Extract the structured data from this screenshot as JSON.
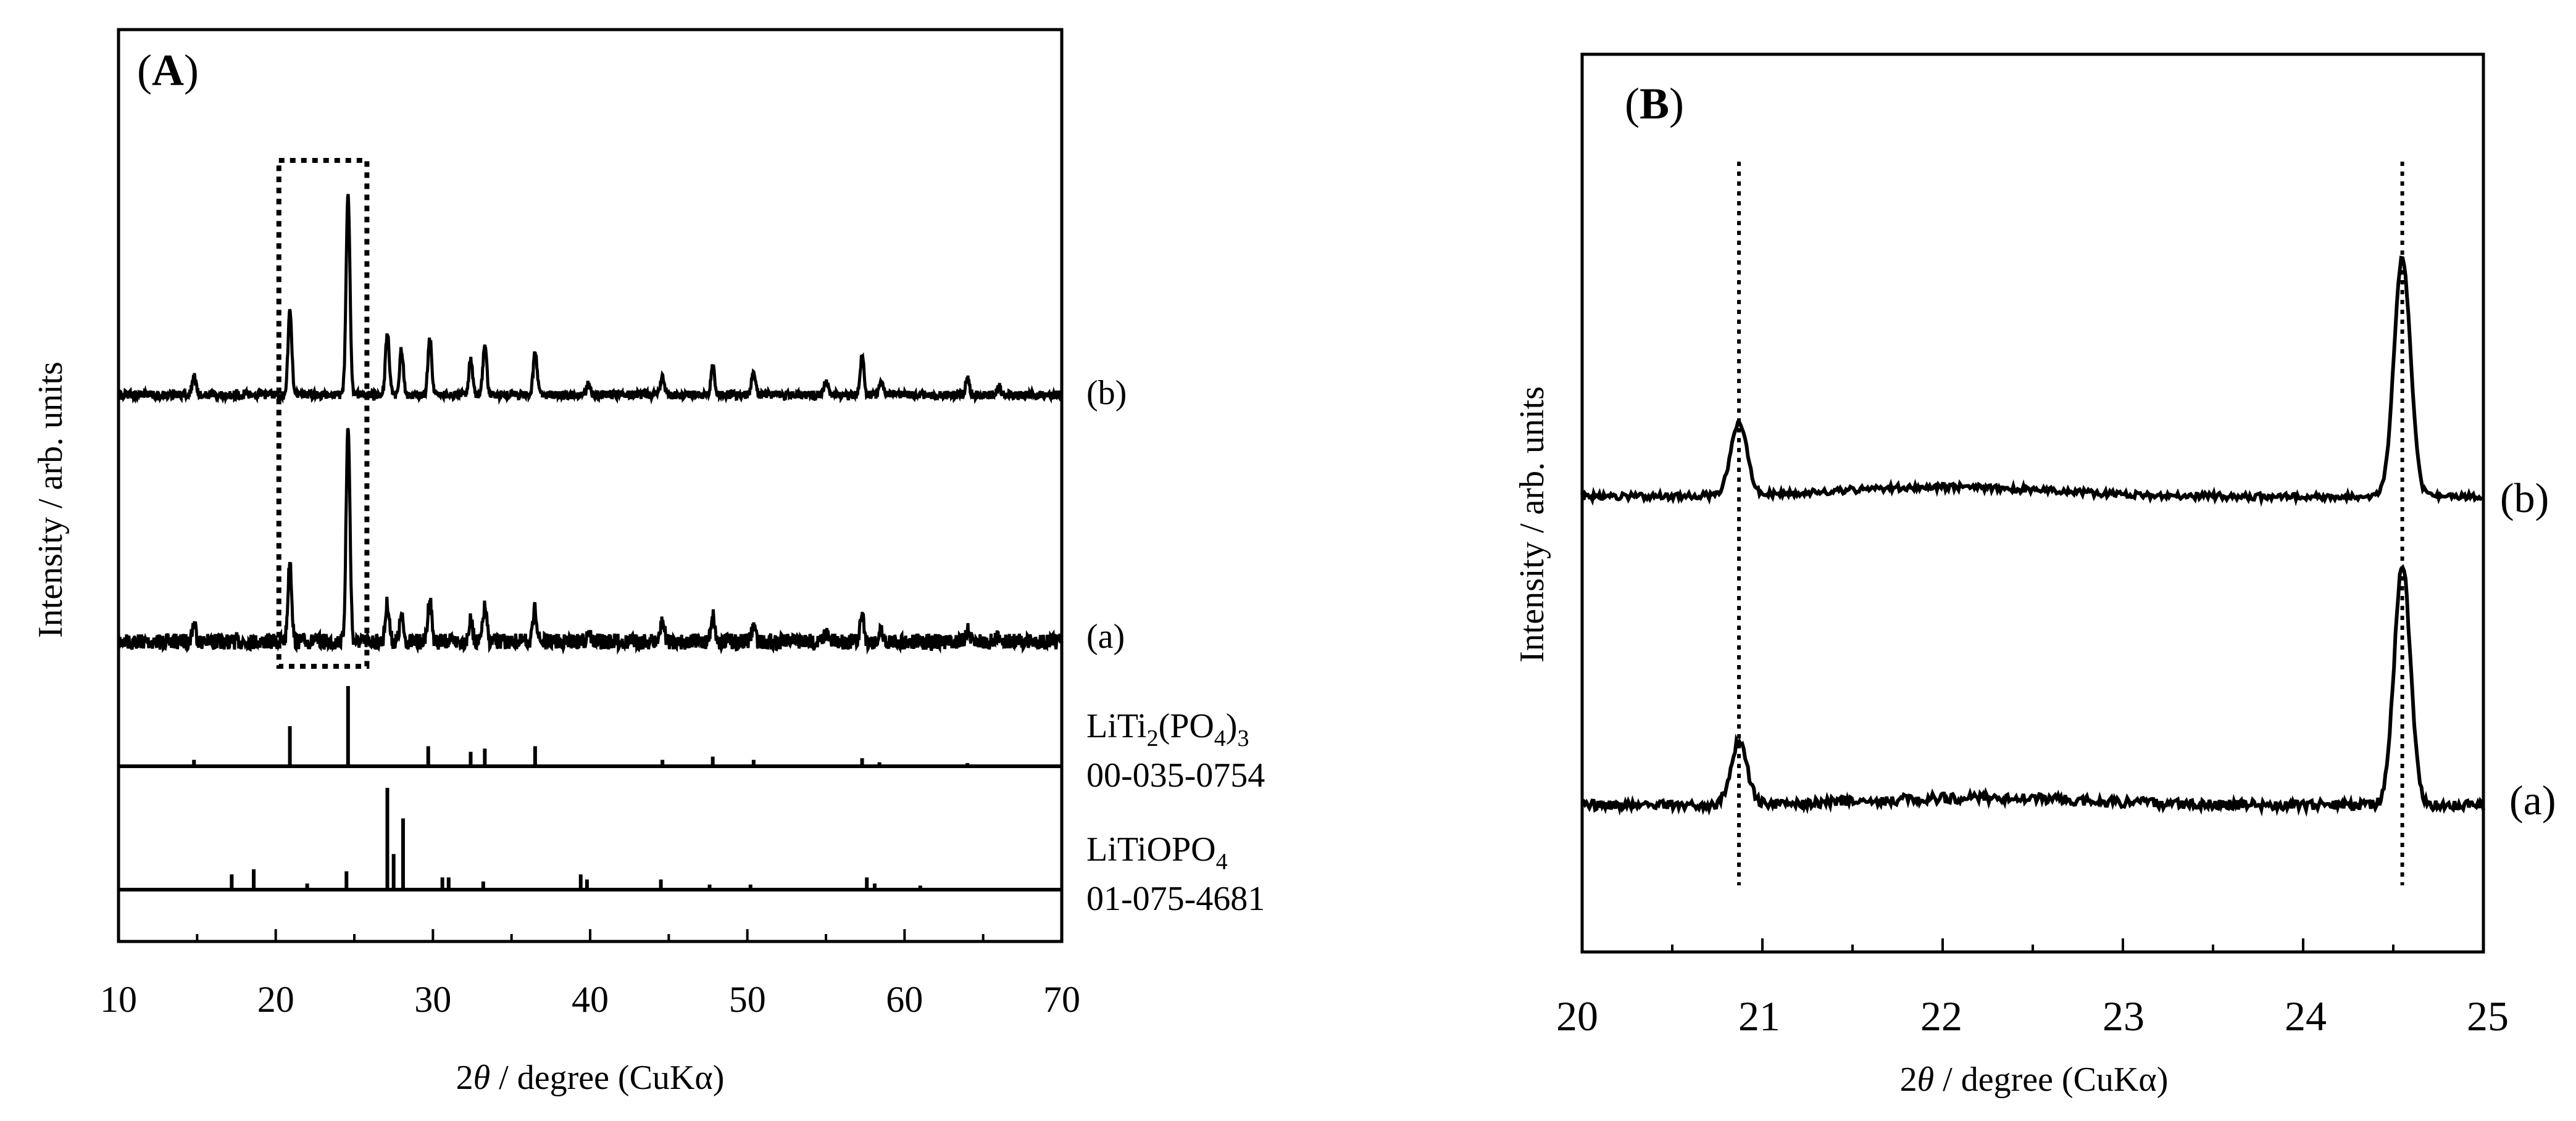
{
  "chart_data": [
    {
      "type": "line",
      "panel_label": "A",
      "xlabel_prefix": "2",
      "xlabel_theta": "θ",
      "xlabel_suffix": " / degree (CuKα)",
      "ylabel": "Intensity / arb. units",
      "xlim": [
        10,
        70
      ],
      "xticks": [
        10,
        20,
        30,
        40,
        50,
        60,
        70
      ],
      "xtick_labels": [
        "10",
        "20",
        "30",
        "40",
        "50",
        "60",
        "70"
      ],
      "highlight_box_x": [
        20.2,
        25.8
      ],
      "series": [
        {
          "name": "(a)",
          "peaks": [
            [
              14.8,
              0.08
            ],
            [
              20.9,
              0.35
            ],
            [
              24.6,
              0.95
            ],
            [
              27.1,
              0.17
            ],
            [
              28.0,
              0.11
            ],
            [
              29.8,
              0.19
            ],
            [
              32.4,
              0.09
            ],
            [
              33.3,
              0.15
            ],
            [
              36.5,
              0.14
            ],
            [
              39.9,
              0.05
            ],
            [
              44.6,
              0.09
            ],
            [
              47.8,
              0.12
            ],
            [
              50.4,
              0.07
            ],
            [
              55.0,
              0.04
            ],
            [
              57.3,
              0.12
            ],
            [
              58.5,
              0.05
            ],
            [
              64.0,
              0.05
            ],
            [
              66.0,
              0.03
            ]
          ]
        },
        {
          "name": "(b)",
          "peaks": [
            [
              14.8,
              0.09
            ],
            [
              20.9,
              0.41
            ],
            [
              24.6,
              1.0
            ],
            [
              27.1,
              0.3
            ],
            [
              28.0,
              0.22
            ],
            [
              29.8,
              0.28
            ],
            [
              32.4,
              0.17
            ],
            [
              33.3,
              0.24
            ],
            [
              36.5,
              0.21
            ],
            [
              39.9,
              0.06
            ],
            [
              44.6,
              0.1
            ],
            [
              47.8,
              0.14
            ],
            [
              50.4,
              0.12
            ],
            [
              55.0,
              0.07
            ],
            [
              57.3,
              0.19
            ],
            [
              58.5,
              0.07
            ],
            [
              64.0,
              0.08
            ],
            [
              66.0,
              0.04
            ]
          ]
        }
      ],
      "references": [
        {
          "formula_base": "LiTi",
          "formula_sub1": "2",
          "formula_mid": "(PO",
          "formula_sub2": "4",
          "formula_end": ")",
          "formula_sub3": "3",
          "pdf": "00-035-0754",
          "lines": [
            [
              14.8,
              0.08
            ],
            [
              20.9,
              0.5
            ],
            [
              24.6,
              1.0
            ],
            [
              29.7,
              0.25
            ],
            [
              32.4,
              0.18
            ],
            [
              33.3,
              0.22
            ],
            [
              36.5,
              0.25
            ],
            [
              44.6,
              0.08
            ],
            [
              47.8,
              0.12
            ],
            [
              50.4,
              0.08
            ],
            [
              57.3,
              0.1
            ],
            [
              58.4,
              0.05
            ],
            [
              64.0,
              0.04
            ]
          ]
        },
        {
          "formula_base": "LiTiOPO",
          "formula_sub1": "4",
          "pdf": "01-075-4681",
          "lines": [
            [
              17.2,
              0.15
            ],
            [
              18.6,
              0.2
            ],
            [
              22.0,
              0.06
            ],
            [
              24.5,
              0.18
            ],
            [
              27.1,
              1.0
            ],
            [
              27.5,
              0.35
            ],
            [
              28.1,
              0.7
            ],
            [
              30.6,
              0.12
            ],
            [
              31.0,
              0.12
            ],
            [
              33.2,
              0.08
            ],
            [
              39.4,
              0.15
            ],
            [
              39.8,
              0.1
            ],
            [
              44.5,
              0.1
            ],
            [
              47.6,
              0.05
            ],
            [
              50.2,
              0.05
            ],
            [
              57.6,
              0.12
            ],
            [
              58.1,
              0.06
            ],
            [
              61.0,
              0.04
            ]
          ]
        }
      ]
    },
    {
      "type": "line",
      "panel_label": "B",
      "xlabel_prefix": "2",
      "xlabel_theta": "θ",
      "xlabel_suffix": " / degree (CuKα)",
      "ylabel": "Intensity / arb. units",
      "xlim": [
        20,
        25
      ],
      "xticks": [
        20,
        21,
        22,
        23,
        24,
        25
      ],
      "xtick_labels": [
        "20",
        "21",
        "22",
        "23",
        "24",
        "25"
      ],
      "dotted_guides_x": [
        20.87,
        24.55
      ],
      "series": [
        {
          "name": "(a)",
          "peaks": [
            [
              20.87,
              0.26
            ],
            [
              24.55,
              1.0
            ]
          ],
          "hump_center": 22.2,
          "hump_height": 0.03
        },
        {
          "name": "(b)",
          "peaks": [
            [
              20.87,
              0.3
            ],
            [
              24.55,
              1.0
            ]
          ],
          "hump_center": 22.0,
          "hump_height": 0.04
        }
      ]
    }
  ]
}
